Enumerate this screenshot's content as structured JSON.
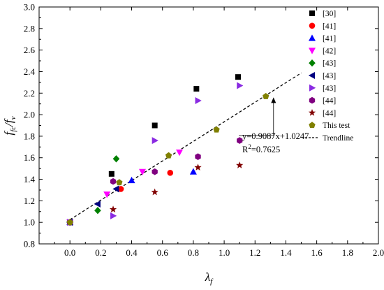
{
  "chart_data": {
    "type": "scatter",
    "xlim": [
      -0.2,
      2.0
    ],
    "ylim": [
      0.8,
      3.0
    ],
    "xticks": [
      "0.0",
      "0.2",
      "0.4",
      "0.6",
      "0.8",
      "1.0",
      "1.2",
      "1.4",
      "1.6",
      "1.8",
      "2.0"
    ],
    "yticks": [
      "0.8",
      "1.0",
      "1.2",
      "1.4",
      "1.6",
      "1.8",
      "2.0",
      "2.2",
      "2.4",
      "2.6",
      "2.8",
      "3.0"
    ],
    "xlabel": "λ",
    "xlabel_sub": "f",
    "ylabel_main": "f",
    "ylabel_sub": "fc",
    "ylabel_mid": "/f",
    "ylabel_sub2": "v",
    "legend_position": "top-right",
    "grid": false,
    "series": [
      {
        "name": "[30]",
        "marker": "square",
        "color": "#000000",
        "points": [
          [
            0.0,
            1.0
          ],
          [
            0.27,
            1.45
          ],
          [
            0.55,
            1.9
          ],
          [
            0.82,
            2.24
          ],
          [
            1.09,
            2.35
          ]
        ]
      },
      {
        "name": "[41]",
        "marker": "circle",
        "color": "#ff0000",
        "points": [
          [
            0.0,
            1.0
          ],
          [
            0.33,
            1.31
          ],
          [
            0.65,
            1.46
          ]
        ]
      },
      {
        "name": "[41]",
        "marker": "triangle-up",
        "color": "#0000ff",
        "points": [
          [
            0.0,
            1.0
          ],
          [
            0.4,
            1.39
          ],
          [
            0.8,
            1.47
          ]
        ]
      },
      {
        "name": "[42]",
        "marker": "triangle-down",
        "color": "#ff00ff",
        "points": [
          [
            0.0,
            1.0
          ],
          [
            0.24,
            1.26
          ],
          [
            0.47,
            1.47
          ],
          [
            0.71,
            1.65
          ]
        ]
      },
      {
        "name": "[43]",
        "marker": "diamond",
        "color": "#008000",
        "points": [
          [
            0.0,
            1.0
          ],
          [
            0.18,
            1.11
          ],
          [
            0.3,
            1.59
          ]
        ]
      },
      {
        "name": "[43]",
        "marker": "triangle-left",
        "color": "#000080",
        "points": [
          [
            0.0,
            1.0
          ],
          [
            0.18,
            1.17
          ],
          [
            0.3,
            1.31
          ]
        ]
      },
      {
        "name": "[43]",
        "marker": "triangle-right",
        "color": "#8a2be2",
        "points": [
          [
            0.0,
            1.0
          ],
          [
            0.28,
            1.06
          ],
          [
            0.55,
            1.76
          ],
          [
            0.83,
            2.13
          ],
          [
            1.1,
            2.27
          ]
        ]
      },
      {
        "name": "[44]",
        "marker": "hexagon",
        "color": "#800080",
        "points": [
          [
            0.0,
            1.0
          ],
          [
            0.28,
            1.38
          ],
          [
            0.55,
            1.47
          ],
          [
            0.83,
            1.61
          ],
          [
            1.1,
            1.76
          ]
        ]
      },
      {
        "name": "[44]",
        "marker": "star",
        "color": "#800000",
        "points": [
          [
            0.0,
            1.0
          ],
          [
            0.28,
            1.12
          ],
          [
            0.55,
            1.28
          ],
          [
            0.83,
            1.51
          ],
          [
            1.1,
            1.53
          ]
        ]
      },
      {
        "name": "This test",
        "marker": "pentagon",
        "color": "#808000",
        "points": [
          [
            0.0,
            1.0
          ],
          [
            0.32,
            1.37
          ],
          [
            0.64,
            1.62
          ],
          [
            0.95,
            1.86
          ],
          [
            1.27,
            2.17
          ]
        ]
      }
    ],
    "trendline": {
      "name": "Trendline",
      "slope": 0.9087,
      "intercept": 1.0247,
      "x_range": [
        0.0,
        1.5
      ],
      "style": "dashed",
      "color": "#000000"
    },
    "annotation": {
      "line1": "y=0.9087x+1.0247",
      "line2_prefix": "R",
      "line2_sup": "2",
      "line2_suffix": "=0.7625",
      "arrow_to": [
        1.32,
        2.16
      ]
    }
  }
}
